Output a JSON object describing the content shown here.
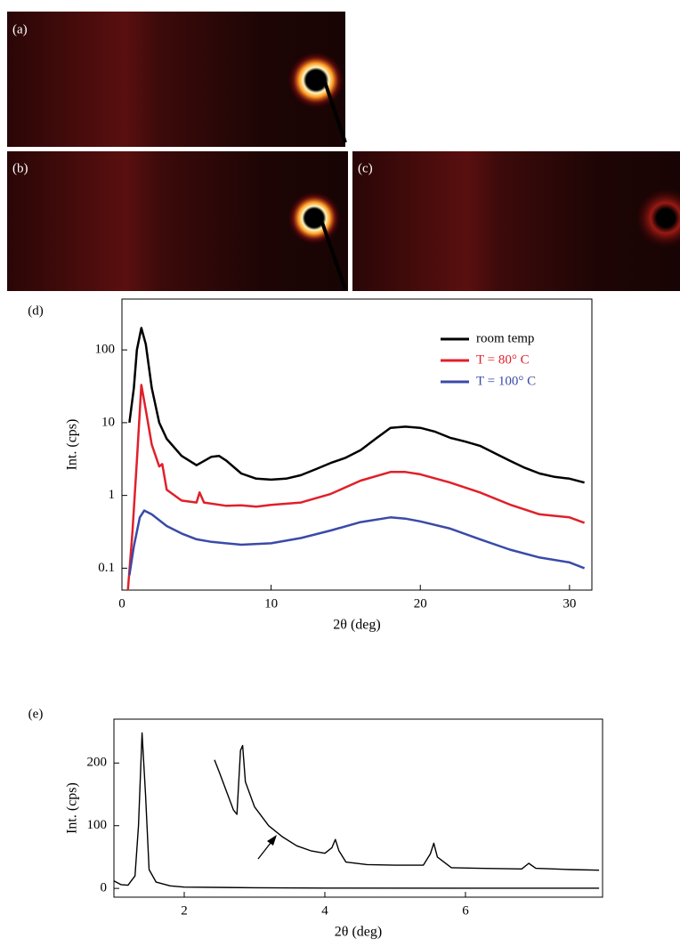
{
  "panels": [
    {
      "label": "(a)"
    },
    {
      "label": "(b)"
    },
    {
      "label": "(c)"
    }
  ],
  "chart_data": [
    {
      "type": "line",
      "label": "(d)",
      "x_label": "2θ (deg)",
      "y_label": "Int. (cps)",
      "log_y": true,
      "xlim": [
        0,
        31.5
      ],
      "ylim": [
        0.05,
        500
      ],
      "xticks": [
        0,
        10,
        20,
        30
      ],
      "yticks": [
        0.1,
        1,
        10,
        100
      ],
      "legend": "top-right",
      "series": [
        {
          "name": "room temp",
          "color": "#000000",
          "x": [
            0.5,
            0.8,
            1.0,
            1.3,
            1.6,
            2,
            2.5,
            3,
            4,
            5,
            6,
            6.5,
            7,
            8,
            9,
            10,
            11,
            12,
            13,
            14,
            15,
            16,
            17,
            18,
            19,
            20,
            21,
            22,
            23,
            24,
            25,
            26,
            27,
            28,
            29,
            30,
            31
          ],
          "values": [
            10,
            30,
            100,
            200,
            120,
            30,
            10,
            6,
            3.5,
            2.6,
            3.4,
            3.5,
            3,
            2,
            1.7,
            1.65,
            1.7,
            1.9,
            2.3,
            2.8,
            3.3,
            4.2,
            6,
            8.5,
            8.8,
            8.5,
            7.5,
            6.2,
            5.5,
            4.8,
            3.8,
            3,
            2.4,
            2,
            1.8,
            1.7,
            1.5
          ]
        },
        {
          "name": "T = 80° C",
          "color": "#e0202a",
          "x": [
            0.4,
            0.7,
            1.0,
            1.3,
            1.6,
            2,
            2.5,
            2.7,
            3,
            4,
            5,
            5.2,
            5.5,
            7,
            8,
            9,
            10,
            12,
            14,
            16,
            18,
            19,
            20,
            22,
            24,
            26,
            28,
            30,
            31
          ],
          "values": [
            0.05,
            0.3,
            3,
            33,
            15,
            5,
            2.5,
            2.7,
            1.2,
            0.85,
            0.8,
            1.1,
            0.8,
            0.72,
            0.73,
            0.7,
            0.74,
            0.8,
            1.05,
            1.6,
            2.1,
            2.1,
            1.95,
            1.5,
            1.1,
            0.75,
            0.55,
            0.5,
            0.42
          ]
        },
        {
          "name": "T = 100° C",
          "color": "#3a4aa8",
          "x": [
            0.5,
            0.8,
            1.2,
            1.5,
            2,
            3,
            4,
            5,
            6,
            8,
            10,
            12,
            14,
            16,
            18,
            19,
            20,
            22,
            24,
            26,
            28,
            30,
            31
          ],
          "values": [
            0.08,
            0.2,
            0.5,
            0.62,
            0.55,
            0.38,
            0.3,
            0.25,
            0.23,
            0.21,
            0.22,
            0.26,
            0.33,
            0.43,
            0.5,
            0.48,
            0.44,
            0.35,
            0.25,
            0.18,
            0.14,
            0.12,
            0.1
          ]
        }
      ]
    },
    {
      "type": "line",
      "label": "(e)",
      "x_label": "2θ (deg)",
      "y_label": "Int. (cps)",
      "xlim": [
        1,
        7.95
      ],
      "ylim": [
        -14,
        270
      ],
      "xticks": [
        2,
        4,
        6
      ],
      "yticks": [
        0,
        100,
        200
      ],
      "series": [
        {
          "color": "#000000",
          "x": [
            1,
            1.1,
            1.2,
            1.3,
            1.35,
            1.4,
            1.45,
            1.5,
            1.6,
            1.8,
            2,
            3,
            4,
            6,
            7.9
          ],
          "values": [
            12,
            6,
            5,
            20,
            100,
            248,
            150,
            30,
            10,
            4,
            2,
            1,
            0.5,
            0.3,
            0.3
          ]
        },
        {
          "color": "#000000",
          "x": [
            2.43,
            2.5,
            2.6,
            2.7,
            2.75,
            2.8,
            2.83,
            2.87,
            3,
            3.2,
            3.4,
            3.6,
            3.8,
            4,
            4.1,
            4.15,
            4.2,
            4.3,
            4.6,
            5,
            5.4,
            5.5,
            5.55,
            5.6,
            5.8,
            6.2,
            6.8,
            6.9,
            7,
            7.5,
            7.9
          ],
          "values": [
            205,
            185,
            155,
            125,
            118,
            220,
            228,
            170,
            130,
            100,
            82,
            68,
            60,
            56,
            65,
            78,
            60,
            42,
            38,
            37,
            37,
            55,
            72,
            50,
            33,
            32,
            31,
            40,
            32,
            30,
            29
          ]
        }
      ]
    }
  ]
}
